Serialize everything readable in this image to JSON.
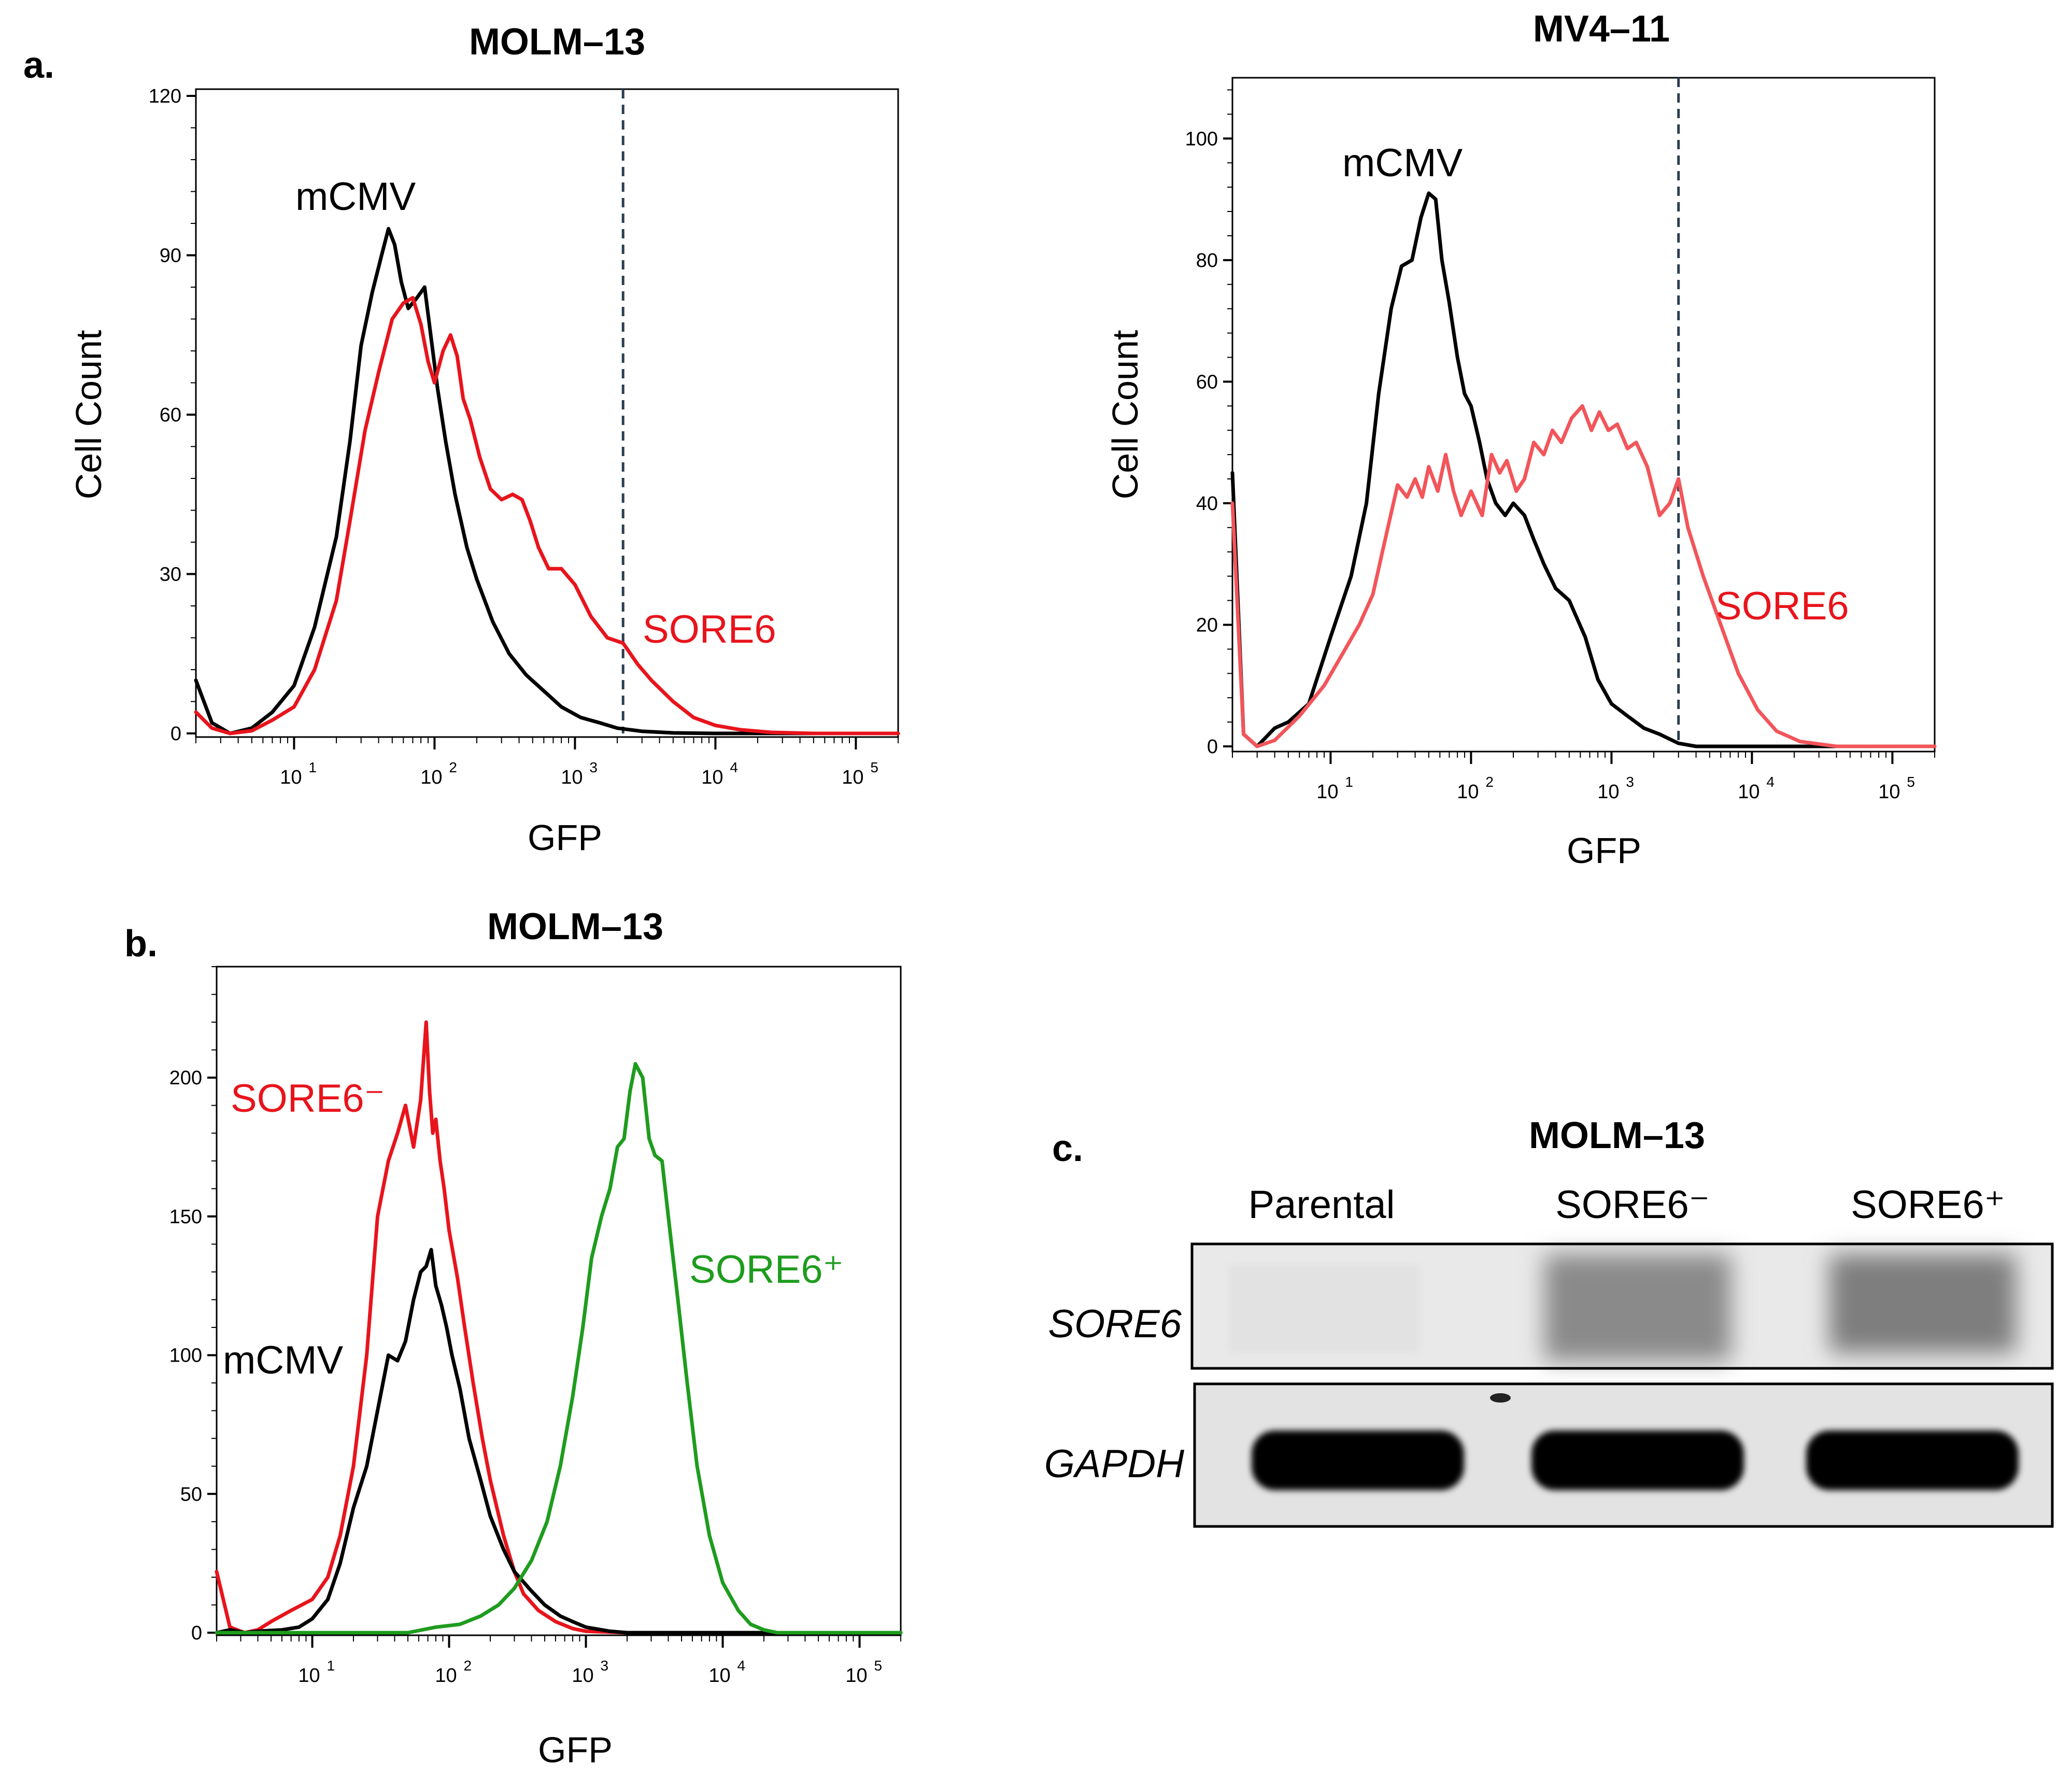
{
  "panel_a": {
    "label": "a.",
    "left": {
      "title": "MOLM–13",
      "xlabel": "GFP",
      "ylabel": "Cell Count",
      "yticks": [
        "0",
        "30",
        "60",
        "90",
        "120"
      ],
      "xticks": [
        "10",
        "10",
        "10",
        "10",
        "10"
      ],
      "xtick_exps": [
        "1",
        "2",
        "3",
        "4",
        "5"
      ],
      "series_labels": {
        "mcmv": "mCMV",
        "sore6": "SORE6"
      }
    },
    "right": {
      "title": "MV4–11",
      "xlabel": "GFP",
      "ylabel": "Cell Count",
      "yticks": [
        "0",
        "20",
        "40",
        "60",
        "80",
        "100"
      ],
      "xticks": [
        "10",
        "10",
        "10",
        "10",
        "10"
      ],
      "xtick_exps": [
        "1",
        "2",
        "3",
        "4",
        "5"
      ],
      "series_labels": {
        "mcmv": "mCMV",
        "sore6": "SORE6"
      }
    }
  },
  "panel_b": {
    "label": "b.",
    "title": "MOLM–13",
    "xlabel": "GFP",
    "yticks": [
      "0",
      "50",
      "100",
      "150",
      "200"
    ],
    "xticks": [
      "10",
      "10",
      "10",
      "10",
      "10"
    ],
    "xtick_exps": [
      "1",
      "2",
      "3",
      "4",
      "5"
    ],
    "series_labels": {
      "sore6_neg": "SORE6⁻",
      "sore6_pos": "SORE6⁺",
      "mcmv": "mCMV"
    }
  },
  "panel_c": {
    "label": "c.",
    "title": "MOLM–13",
    "lanes": [
      "Parental",
      "SORE6⁻",
      "SORE6⁺"
    ],
    "genes": [
      "SORE6",
      "GAPDH"
    ]
  },
  "colors": {
    "mcmv": "#000000",
    "sore6": "#e8141c",
    "sore6_light": "#f2555a",
    "sore6_pos": "#1e9c1e",
    "threshold": "#2c3e50"
  },
  "chart_data": [
    {
      "type": "line",
      "id": "a-left",
      "title": "MOLM–13",
      "xlabel": "GFP",
      "ylabel": "Cell Count",
      "xscale": "log",
      "xlim": [
        2,
        200000
      ],
      "ylim": [
        0,
        120
      ],
      "threshold_x": 2200,
      "series": [
        {
          "name": "mCMV",
          "color": "#000000",
          "x": [
            2,
            2.6,
            3.5,
            5,
            7,
            10,
            14,
            20,
            25,
            30,
            36,
            42,
            47,
            52,
            58,
            65,
            75,
            85,
            95,
            105,
            120,
            140,
            170,
            200,
            260,
            340,
            450,
            600,
            800,
            1100,
            1500,
            2000,
            3000,
            5000,
            10000,
            200000
          ],
          "y": [
            10,
            2,
            0,
            1,
            4,
            9,
            20,
            37,
            55,
            73,
            83,
            90,
            95,
            92,
            85,
            80,
            82,
            84,
            74,
            65,
            55,
            45,
            35,
            29,
            21,
            15,
            11,
            8,
            5,
            3,
            2,
            1,
            0.4,
            0.1,
            0,
            0
          ]
        },
        {
          "name": "SORE6",
          "color": "#e8141c",
          "x": [
            2,
            2.6,
            3.5,
            5,
            7,
            10,
            14,
            20,
            25,
            32,
            40,
            50,
            60,
            70,
            80,
            90,
            100,
            115,
            130,
            145,
            160,
            180,
            210,
            250,
            300,
            360,
            420,
            480,
            550,
            650,
            800,
            1000,
            1300,
            1700,
            2200,
            2800,
            3500,
            5000,
            7000,
            10000,
            15000,
            25000,
            50000,
            200000
          ],
          "y": [
            4,
            1,
            0,
            0.5,
            2.5,
            5,
            12,
            25,
            40,
            57,
            68,
            78,
            81,
            82,
            77,
            70,
            66,
            72,
            75,
            71,
            63,
            59,
            52,
            46,
            44,
            45,
            44,
            40,
            35,
            31,
            31,
            28,
            22,
            18,
            17,
            13,
            10,
            6,
            3,
            1.5,
            0.7,
            0.2,
            0,
            0
          ]
        }
      ]
    },
    {
      "type": "line",
      "id": "a-right",
      "title": "MV4–11",
      "xlabel": "GFP",
      "ylabel": "Cell Count",
      "xscale": "log",
      "xlim": [
        2,
        200000
      ],
      "ylim": [
        0,
        110
      ],
      "threshold_x": 3000,
      "series": [
        {
          "name": "mCMV",
          "color": "#000000",
          "x": [
            2,
            2.4,
            3,
            4,
            5,
            7,
            10,
            14,
            18,
            22,
            27,
            32,
            38,
            44,
            50,
            56,
            62,
            70,
            80,
            90,
            100,
            115,
            130,
            150,
            175,
            200,
            240,
            280,
            330,
            400,
            500,
            650,
            800,
            1000,
            1300,
            1700,
            2200,
            3000,
            4000,
            200000
          ],
          "y": [
            45,
            2,
            0,
            3,
            4,
            7,
            18,
            28,
            40,
            58,
            72,
            79,
            80,
            87,
            91,
            90,
            80,
            73,
            64,
            58,
            56,
            50,
            44,
            40,
            38,
            40,
            38,
            34,
            30,
            26,
            24,
            18,
            11,
            7,
            5,
            3,
            2,
            0.5,
            0,
            0
          ]
        },
        {
          "name": "SORE6",
          "color": "#f2555a",
          "x": [
            2,
            2.4,
            3,
            4,
            6,
            9,
            12,
            16,
            20,
            25,
            30,
            35,
            40,
            45,
            50,
            58,
            66,
            75,
            85,
            100,
            120,
            140,
            160,
            180,
            210,
            240,
            280,
            330,
            380,
            440,
            520,
            620,
            720,
            820,
            950,
            1100,
            1300,
            1500,
            1800,
            2200,
            2600,
            3000,
            3500,
            4500,
            6000,
            8000,
            11000,
            15000,
            22000,
            40000,
            200000
          ],
          "y": [
            40,
            2,
            0,
            1,
            5,
            10,
            15,
            20,
            25,
            35,
            43,
            41,
            44,
            41,
            46,
            42,
            48,
            42,
            38,
            42,
            38,
            48,
            45,
            47,
            42,
            44,
            50,
            48,
            52,
            50,
            54,
            56,
            52,
            55,
            52,
            53,
            49,
            50,
            46,
            38,
            40,
            44,
            36,
            28,
            20,
            12,
            6,
            2.5,
            0.8,
            0,
            0
          ]
        }
      ]
    },
    {
      "type": "line",
      "id": "b",
      "title": "MOLM–13",
      "xlabel": "GFP",
      "xscale": "log",
      "xlim": [
        2,
        200000
      ],
      "ylim": [
        0,
        240
      ],
      "series": [
        {
          "name": "SORE6⁻",
          "color": "#e8141c",
          "x": [
            2,
            2.5,
            3.2,
            4,
            5,
            7,
            10,
            13,
            16,
            20,
            25,
            30,
            36,
            42,
            48,
            55,
            62,
            68,
            72,
            76,
            80,
            86,
            92,
            100,
            115,
            130,
            150,
            175,
            200,
            250,
            300,
            350,
            450,
            600,
            800,
            1000,
            1500,
            2000,
            200000
          ],
          "y": [
            22,
            2,
            0,
            1,
            4,
            8,
            12,
            20,
            35,
            60,
            100,
            150,
            170,
            180,
            190,
            175,
            192,
            220,
            195,
            180,
            185,
            170,
            160,
            145,
            128,
            110,
            90,
            70,
            55,
            35,
            22,
            14,
            8,
            4,
            1.5,
            0.5,
            0.2,
            0,
            0
          ]
        },
        {
          "name": "mCMV",
          "color": "#000000",
          "x": [
            2,
            2.5,
            3.2,
            4,
            6,
            8,
            10,
            13,
            16,
            20,
            25,
            30,
            36,
            42,
            48,
            55,
            62,
            68,
            74,
            80,
            88,
            96,
            105,
            120,
            140,
            170,
            200,
            250,
            300,
            400,
            500,
            650,
            800,
            1000,
            1500,
            2000,
            200000
          ],
          "y": [
            0,
            1,
            0,
            0.5,
            1,
            2,
            5,
            12,
            25,
            45,
            60,
            80,
            100,
            98,
            105,
            120,
            130,
            132,
            138,
            125,
            118,
            110,
            100,
            88,
            70,
            55,
            42,
            30,
            22,
            15,
            10,
            6,
            4,
            2,
            0.5,
            0,
            0
          ]
        },
        {
          "name": "SORE6⁺",
          "color": "#1e9c1e",
          "x": [
            2,
            50,
            80,
            120,
            170,
            230,
            300,
            400,
            520,
            650,
            800,
            950,
            1100,
            1300,
            1500,
            1700,
            1900,
            2100,
            2300,
            2600,
            2900,
            3200,
            3600,
            4000,
            4700,
            5500,
            6500,
            8000,
            10000,
            13000,
            16000,
            20000,
            25000,
            200000
          ],
          "y": [
            0,
            0,
            2,
            3,
            6,
            10,
            16,
            26,
            40,
            60,
            85,
            110,
            135,
            150,
            160,
            175,
            178,
            195,
            205,
            200,
            178,
            172,
            170,
            150,
            120,
            90,
            60,
            35,
            18,
            8,
            3,
            1,
            0,
            0
          ]
        }
      ]
    }
  ]
}
